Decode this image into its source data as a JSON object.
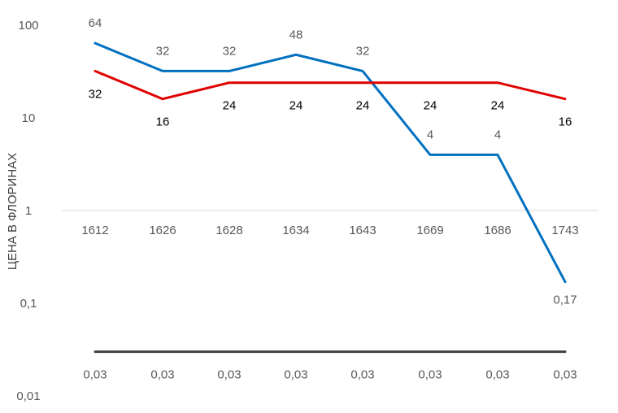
{
  "chart_data": {
    "type": "line",
    "ylabel": "ЦЕНА В ФЛОРИНАХ",
    "yscale": "log",
    "ylim": [
      0.01,
      100
    ],
    "y_ticks": [
      "0,01",
      "0,1",
      "1",
      "10",
      "100"
    ],
    "y_tick_values": [
      0.01,
      0.1,
      1,
      10,
      100
    ],
    "categories": [
      "1612",
      "1626",
      "1628",
      "1634",
      "1643",
      "1669",
      "1686",
      "1743"
    ],
    "series": [
      {
        "values": [
          64,
          32,
          32,
          48,
          32,
          4,
          4,
          0.17
        ],
        "labels": [
          "64",
          "32",
          "32",
          "48",
          "32",
          "4",
          "4",
          "0,17"
        ],
        "color": "#0070C0"
      },
      {
        "values": [
          32,
          16,
          24,
          24,
          24,
          24,
          24,
          16
        ],
        "labels": [
          "32",
          "16",
          "24",
          "24",
          "24",
          "24",
          "24",
          "16"
        ],
        "color": "#E00000"
      },
      {
        "values": [
          0.03,
          0.03,
          0.03,
          0.03,
          0.03,
          0.03,
          0.03,
          0.03
        ],
        "labels": [
          "0,03",
          "0,03",
          "0,03",
          "0,03",
          "0,03",
          "0,03",
          "0,03",
          "0,03"
        ],
        "color": "#404040"
      }
    ],
    "grid": false,
    "legend": "none"
  }
}
